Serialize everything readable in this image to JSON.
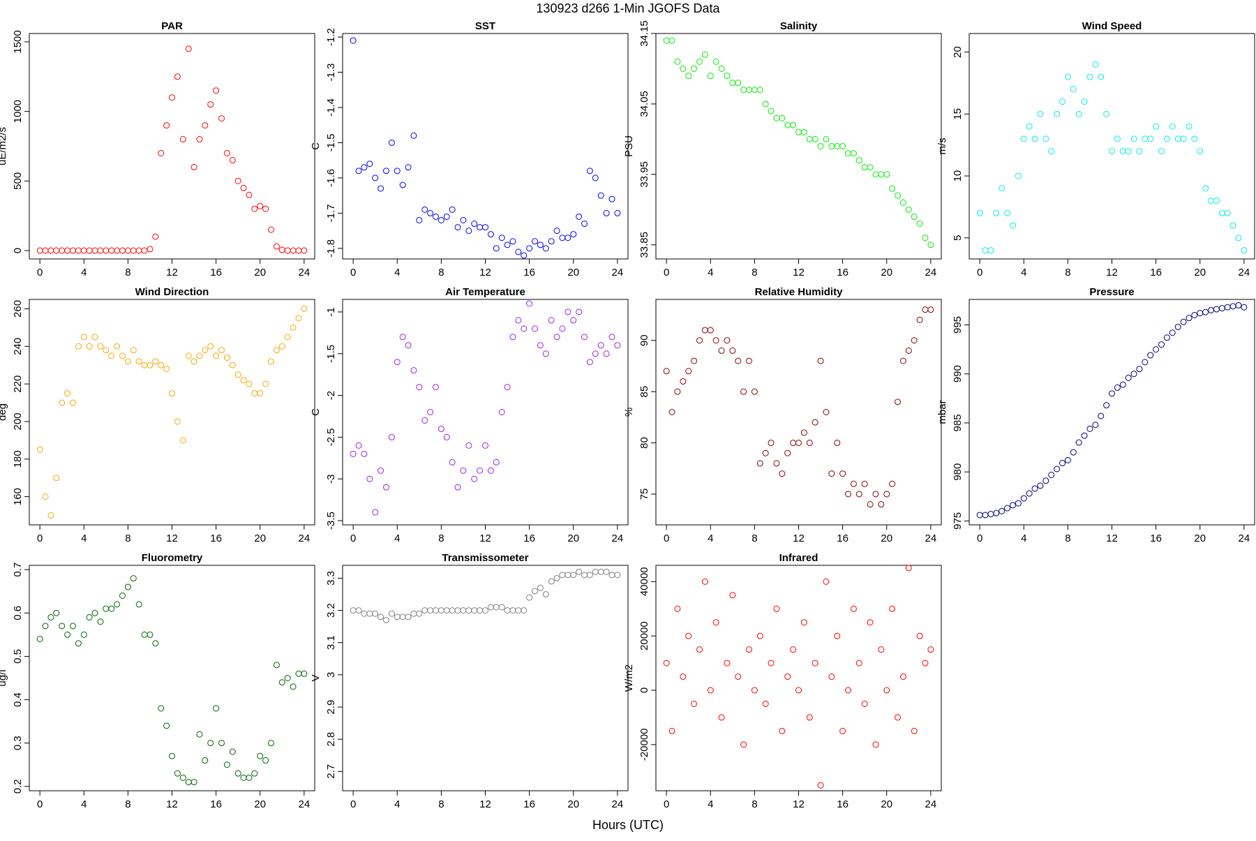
{
  "title": "130923   d266   1-Min  JGOFS Data",
  "xlabel": "Hours (UTC)",
  "chart_data": [
    {
      "type": "scatter",
      "title": "PAR",
      "ylabel": "uE/m2/s",
      "color": "#ff0000",
      "x": [
        0,
        0.5,
        1,
        1.5,
        2,
        2.5,
        3,
        3.5,
        4,
        4.5,
        5,
        5.5,
        6,
        6.5,
        7,
        7.5,
        8,
        8.5,
        9,
        9.5,
        10,
        10.5,
        11,
        11.5,
        12,
        12.5,
        13,
        13.5,
        14,
        14.5,
        15,
        15.5,
        16,
        16.5,
        17,
        17.5,
        18,
        18.5,
        19,
        19.5,
        20,
        20.5,
        21,
        21.5,
        22,
        22.5,
        23,
        23.5,
        24
      ],
      "values": [
        0,
        0,
        0,
        0,
        0,
        0,
        0,
        0,
        0,
        0,
        0,
        0,
        0,
        0,
        0,
        0,
        0,
        0,
        0,
        0,
        10,
        100,
        700,
        900,
        1100,
        1250,
        800,
        1450,
        600,
        800,
        900,
        1050,
        1150,
        950,
        700,
        650,
        500,
        450,
        400,
        300,
        320,
        300,
        150,
        30,
        5,
        0,
        0,
        0,
        0
      ],
      "xlim": [
        -0.96,
        24.96
      ],
      "xticks": [
        0,
        4,
        8,
        12,
        16,
        20,
        24
      ],
      "ylim": [
        -60,
        1560
      ],
      "yticks": [
        0,
        500,
        1000,
        1500
      ]
    },
    {
      "type": "scatter",
      "title": "SST",
      "ylabel": "C",
      "color": "#0000ff",
      "x": [
        0,
        0.5,
        1,
        1.5,
        2,
        2.5,
        3,
        3.5,
        4,
        4.5,
        5,
        5.5,
        6,
        6.5,
        7,
        7.5,
        8,
        8.5,
        9,
        9.5,
        10,
        10.5,
        11,
        11.5,
        12,
        12.5,
        13,
        13.5,
        14,
        14.5,
        15,
        15.5,
        16,
        16.5,
        17,
        17.5,
        18,
        18.5,
        19,
        19.5,
        20,
        20.5,
        21,
        21.5,
        22,
        22.5,
        23,
        23.5,
        24
      ],
      "values": [
        -1.21,
        -1.58,
        -1.57,
        -1.56,
        -1.6,
        -1.63,
        -1.58,
        -1.5,
        -1.58,
        -1.62,
        -1.57,
        -1.48,
        -1.72,
        -1.69,
        -1.7,
        -1.71,
        -1.72,
        -1.71,
        -1.69,
        -1.74,
        -1.72,
        -1.75,
        -1.73,
        -1.74,
        -1.74,
        -1.76,
        -1.8,
        -1.77,
        -1.79,
        -1.78,
        -1.81,
        -1.82,
        -1.8,
        -1.78,
        -1.79,
        -1.8,
        -1.78,
        -1.75,
        -1.77,
        -1.77,
        -1.76,
        -1.71,
        -1.73,
        -1.58,
        -1.6,
        -1.65,
        -1.7,
        -1.66,
        -1.7
      ],
      "xlim": [
        -0.96,
        24.96
      ],
      "xticks": [
        0,
        4,
        8,
        12,
        16,
        20,
        24
      ],
      "ylim": [
        -1.83,
        -1.19
      ],
      "yticks": [
        -1.8,
        -1.7,
        -1.6,
        -1.5,
        -1.4,
        -1.3,
        -1.2
      ]
    },
    {
      "type": "scatter",
      "title": "Salinity",
      "ylabel": "PSU",
      "color": "#00ee00",
      "x": [
        0,
        0.5,
        1,
        1.5,
        2,
        2.5,
        3,
        3.5,
        4,
        4.5,
        5,
        5.5,
        6,
        6.5,
        7,
        7.5,
        8,
        8.5,
        9,
        9.5,
        10,
        10.5,
        11,
        11.5,
        12,
        12.5,
        13,
        13.5,
        14,
        14.5,
        15,
        15.5,
        16,
        16.5,
        17,
        17.5,
        18,
        18.5,
        19,
        19.5,
        20,
        20.5,
        21,
        21.5,
        22,
        22.5,
        23,
        23.5,
        24
      ],
      "values": [
        34.14,
        34.14,
        34.11,
        34.1,
        34.09,
        34.1,
        34.11,
        34.12,
        34.09,
        34.11,
        34.1,
        34.09,
        34.08,
        34.08,
        34.07,
        34.07,
        34.07,
        34.07,
        34.05,
        34.04,
        34.03,
        34.03,
        34.02,
        34.02,
        34.01,
        34.01,
        34.0,
        34.0,
        33.99,
        34.0,
        33.99,
        33.99,
        33.99,
        33.98,
        33.98,
        33.97,
        33.96,
        33.96,
        33.95,
        33.95,
        33.95,
        33.93,
        33.92,
        33.91,
        33.9,
        33.89,
        33.88,
        33.86,
        33.85
      ],
      "xlim": [
        -0.96,
        24.96
      ],
      "xticks": [
        0,
        4,
        8,
        12,
        16,
        20,
        24
      ],
      "ylim": [
        33.83,
        34.15
      ],
      "yticks": [
        33.85,
        33.95,
        34.05,
        34.15
      ]
    },
    {
      "type": "scatter",
      "title": "Wind Speed",
      "ylabel": "m/s",
      "color": "#00eeee",
      "x": [
        0,
        0.5,
        1,
        1.5,
        2,
        2.5,
        3,
        3.5,
        4,
        4.5,
        5,
        5.5,
        6,
        6.5,
        7,
        7.5,
        8,
        8.5,
        9,
        9.5,
        10,
        10.5,
        11,
        11.5,
        12,
        12.5,
        13,
        13.5,
        14,
        14.5,
        15,
        15.5,
        16,
        16.5,
        17,
        17.5,
        18,
        18.5,
        19,
        19.5,
        20,
        20.5,
        21,
        21.5,
        22,
        22.5,
        23,
        23.5,
        24
      ],
      "values": [
        7,
        4,
        4,
        7,
        9,
        7,
        6,
        10,
        13,
        14,
        13,
        15,
        13,
        12,
        15,
        16,
        18,
        17,
        15,
        16,
        18,
        19,
        18,
        15,
        12,
        13,
        12,
        12,
        13,
        12,
        13,
        13,
        14,
        12,
        13,
        14,
        13,
        13,
        14,
        13,
        12,
        9,
        8,
        8,
        7,
        7,
        6,
        5,
        4
      ],
      "xlim": [
        -0.96,
        24.96
      ],
      "xticks": [
        0,
        4,
        8,
        12,
        16,
        20,
        24
      ],
      "ylim": [
        3.3,
        21.5
      ],
      "yticks": [
        5,
        10,
        15,
        20
      ]
    },
    {
      "type": "scatter",
      "title": "Wind Direction",
      "ylabel": "deg",
      "color": "#ffa500",
      "x": [
        0,
        0.5,
        1,
        1.5,
        2,
        2.5,
        3,
        3.5,
        4,
        4.5,
        5,
        5.5,
        6,
        6.5,
        7,
        7.5,
        8,
        8.5,
        9,
        9.5,
        10,
        10.5,
        11,
        11.5,
        12,
        12.5,
        13,
        13.5,
        14,
        14.5,
        15,
        15.5,
        16,
        16.5,
        17,
        17.5,
        18,
        18.5,
        19,
        19.5,
        20,
        20.5,
        21,
        21.5,
        22,
        22.5,
        23,
        23.5,
        24
      ],
      "values": [
        185,
        160,
        150,
        170,
        210,
        215,
        210,
        240,
        245,
        240,
        245,
        240,
        238,
        235,
        240,
        235,
        232,
        238,
        232,
        230,
        230,
        232,
        230,
        228,
        215,
        200,
        190,
        235,
        232,
        235,
        238,
        240,
        235,
        238,
        234,
        230,
        225,
        222,
        220,
        215,
        215,
        220,
        232,
        238,
        240,
        245,
        250,
        255,
        260
      ],
      "xlim": [
        -0.96,
        24.96
      ],
      "xticks": [
        0,
        4,
        8,
        12,
        16,
        20,
        24
      ],
      "ylim": [
        145,
        265
      ],
      "yticks": [
        160,
        180,
        200,
        220,
        240,
        260
      ]
    },
    {
      "type": "scatter",
      "title": "Air Temperature",
      "ylabel": "C",
      "color": "#a020f0",
      "x": [
        0,
        0.5,
        1,
        1.5,
        2,
        2.5,
        3,
        3.5,
        4,
        4.5,
        5,
        5.5,
        6,
        6.5,
        7,
        7.5,
        8,
        8.5,
        9,
        9.5,
        10,
        10.5,
        11,
        11.5,
        12,
        12.5,
        13,
        13.5,
        14,
        14.5,
        15,
        15.5,
        16,
        16.5,
        17,
        17.5,
        18,
        18.5,
        19,
        19.5,
        20,
        20.5,
        21,
        21.5,
        22,
        22.5,
        23,
        23.5,
        24
      ],
      "values": [
        -2.7,
        -2.6,
        -2.7,
        -3.0,
        -3.4,
        -2.9,
        -3.1,
        -2.5,
        -1.6,
        -1.3,
        -1.4,
        -1.7,
        -1.9,
        -2.3,
        -2.2,
        -1.9,
        -2.4,
        -2.5,
        -2.8,
        -3.1,
        -2.9,
        -2.6,
        -3.0,
        -2.9,
        -2.6,
        -2.9,
        -2.8,
        -2.2,
        -1.9,
        -1.3,
        -1.1,
        -1.2,
        -0.9,
        -1.2,
        -1.4,
        -1.5,
        -1.1,
        -1.3,
        -1.2,
        -1.0,
        -1.1,
        -1.0,
        -1.3,
        -1.6,
        -1.5,
        -1.4,
        -1.5,
        -1.3,
        -1.4
      ],
      "xlim": [
        -0.96,
        24.96
      ],
      "xticks": [
        0,
        4,
        8,
        12,
        16,
        20,
        24
      ],
      "ylim": [
        -3.55,
        -0.85
      ],
      "yticks": [
        -3.5,
        -3.0,
        -2.5,
        -2.0,
        -1.5,
        -1.0
      ]
    },
    {
      "type": "scatter",
      "title": "Relative Humidity",
      "ylabel": "%",
      "color": "#8b0000",
      "x": [
        0,
        0.5,
        1,
        1.5,
        2,
        2.5,
        3,
        3.5,
        4,
        4.5,
        5,
        5.5,
        6,
        6.5,
        7,
        7.5,
        8,
        8.5,
        9,
        9.5,
        10,
        10.5,
        11,
        11.5,
        12,
        12.5,
        13,
        13.5,
        14,
        14.5,
        15,
        15.5,
        16,
        16.5,
        17,
        17.5,
        18,
        18.5,
        19,
        19.5,
        20,
        20.5,
        21,
        21.5,
        22,
        22.5,
        23,
        23.5,
        24
      ],
      "values": [
        87,
        83,
        85,
        86,
        87,
        88,
        90,
        91,
        91,
        90,
        89,
        90,
        89,
        88,
        85,
        88,
        85,
        78,
        79,
        80,
        78,
        77,
        79,
        80,
        80,
        81,
        80,
        82,
        88,
        83,
        77,
        80,
        77,
        75,
        76,
        75,
        76,
        74,
        75,
        74,
        75,
        76,
        84,
        88,
        89,
        90,
        92,
        93,
        93
      ],
      "xlim": [
        -0.96,
        24.96
      ],
      "xticks": [
        0,
        4,
        8,
        12,
        16,
        20,
        24
      ],
      "ylim": [
        72,
        94
      ],
      "yticks": [
        75,
        80,
        85,
        90
      ]
    },
    {
      "type": "scatter",
      "title": "Pressure",
      "ylabel": "mbar",
      "color": "#000080",
      "x": [
        0,
        0.5,
        1,
        1.5,
        2,
        2.5,
        3,
        3.5,
        4,
        4.5,
        5,
        5.5,
        6,
        6.5,
        7,
        7.5,
        8,
        8.5,
        9,
        9.5,
        10,
        10.5,
        11,
        11.5,
        12,
        12.5,
        13,
        13.5,
        14,
        14.5,
        15,
        15.5,
        16,
        16.5,
        17,
        17.5,
        18,
        18.5,
        19,
        19.5,
        20,
        20.5,
        21,
        21.5,
        22,
        22.5,
        23,
        23.5,
        24
      ],
      "values": [
        975.6,
        975.6,
        975.7,
        975.8,
        976,
        976.3,
        976.6,
        976.8,
        977.3,
        977.8,
        978.3,
        978.6,
        979.1,
        979.7,
        980.3,
        980.9,
        981.2,
        982,
        983,
        983.7,
        984.4,
        984.8,
        985.7,
        986.8,
        988,
        988.6,
        988.9,
        989.6,
        990,
        990.5,
        991.2,
        991.9,
        992.5,
        993,
        993.7,
        994.2,
        994.8,
        995.3,
        995.7,
        996,
        996.2,
        996.3,
        996.5,
        996.6,
        996.7,
        996.8,
        996.9,
        997,
        996.8
      ],
      "xlim": [
        -0.96,
        24.96
      ],
      "xticks": [
        0,
        4,
        8,
        12,
        16,
        20,
        24
      ],
      "ylim": [
        974.6,
        997.6
      ],
      "yticks": [
        975,
        980,
        985,
        990,
        995
      ]
    },
    {
      "type": "scatter",
      "title": "Fluorometry",
      "ylabel": "ug/l",
      "color": "#006400",
      "x": [
        0,
        0.5,
        1,
        1.5,
        2,
        2.5,
        3,
        3.5,
        4,
        4.5,
        5,
        5.5,
        6,
        6.5,
        7,
        7.5,
        8,
        8.5,
        9,
        9.5,
        10,
        10.5,
        11,
        11.5,
        12,
        12.5,
        13,
        13.5,
        14,
        14.5,
        15,
        15.5,
        16,
        16.5,
        17,
        17.5,
        18,
        18.5,
        19,
        19.5,
        20,
        20.5,
        21,
        21.5,
        22,
        22.5,
        23,
        23.5,
        24
      ],
      "values": [
        0.54,
        0.57,
        0.59,
        0.6,
        0.57,
        0.55,
        0.57,
        0.53,
        0.55,
        0.59,
        0.6,
        0.58,
        0.61,
        0.61,
        0.62,
        0.64,
        0.66,
        0.68,
        0.62,
        0.55,
        0.55,
        0.53,
        0.38,
        0.34,
        0.27,
        0.23,
        0.22,
        0.21,
        0.21,
        0.32,
        0.26,
        0.3,
        0.38,
        0.3,
        0.25,
        0.28,
        0.23,
        0.22,
        0.22,
        0.23,
        0.27,
        0.26,
        0.3,
        0.48,
        0.44,
        0.45,
        0.43,
        0.46,
        0.46
      ],
      "xlim": [
        -0.96,
        24.96
      ],
      "xticks": [
        0,
        4,
        8,
        12,
        16,
        20,
        24
      ],
      "ylim": [
        0.19,
        0.71
      ],
      "yticks": [
        0.2,
        0.3,
        0.4,
        0.5,
        0.6,
        0.7
      ]
    },
    {
      "type": "scatter",
      "title": "Transmissometer",
      "ylabel": "V",
      "color": "#808080",
      "x": [
        0,
        0.5,
        1,
        1.5,
        2,
        2.5,
        3,
        3.5,
        4,
        4.5,
        5,
        5.5,
        6,
        6.5,
        7,
        7.5,
        8,
        8.5,
        9,
        9.5,
        10,
        10.5,
        11,
        11.5,
        12,
        12.5,
        13,
        13.5,
        14,
        14.5,
        15,
        15.5,
        16,
        16.5,
        17,
        17.5,
        18,
        18.5,
        19,
        19.5,
        20,
        20.5,
        21,
        21.5,
        22,
        22.5,
        23,
        23.5,
        24
      ],
      "values": [
        3.2,
        3.2,
        3.19,
        3.19,
        3.19,
        3.18,
        3.17,
        3.19,
        3.18,
        3.18,
        3.18,
        3.19,
        3.19,
        3.2,
        3.2,
        3.2,
        3.2,
        3.2,
        3.2,
        3.2,
        3.2,
        3.2,
        3.2,
        3.2,
        3.2,
        3.21,
        3.21,
        3.21,
        3.2,
        3.2,
        3.2,
        3.2,
        3.24,
        3.26,
        3.27,
        3.25,
        3.29,
        3.3,
        3.31,
        3.31,
        3.31,
        3.32,
        3.31,
        3.31,
        3.32,
        3.32,
        3.32,
        3.31,
        3.31
      ],
      "xlim": [
        -0.96,
        24.96
      ],
      "xticks": [
        0,
        4,
        8,
        12,
        16,
        20,
        24
      ],
      "ylim": [
        2.64,
        3.34
      ],
      "yticks": [
        2.7,
        2.8,
        2.9,
        3.0,
        3.1,
        3.2,
        3.3
      ]
    },
    {
      "type": "scatter",
      "title": "Infrared",
      "ylabel": "W/m2",
      "color": "#ff0000",
      "x": [
        0,
        0.5,
        1,
        1.5,
        2,
        2.5,
        3,
        3.5,
        4,
        4.5,
        5,
        5.5,
        6,
        6.5,
        7,
        7.5,
        8,
        8.5,
        9,
        9.5,
        10,
        10.5,
        11,
        11.5,
        12,
        12.5,
        13,
        13.5,
        14,
        14.5,
        15,
        15.5,
        16,
        16.5,
        17,
        17.5,
        18,
        18.5,
        19,
        19.5,
        20,
        20.5,
        21,
        21.5,
        22,
        22.5,
        23,
        23.5,
        24
      ],
      "values": [
        10000,
        -15000,
        30000,
        5000,
        20000,
        -5000,
        15000,
        40000,
        0,
        25000,
        -10000,
        10000,
        35000,
        5000,
        -20000,
        15000,
        0,
        20000,
        -5000,
        10000,
        30000,
        -15000,
        5000,
        15000,
        0,
        25000,
        -10000,
        10000,
        -35000,
        40000,
        5000,
        20000,
        -15000,
        0,
        30000,
        10000,
        -5000,
        25000,
        -20000,
        15000,
        0,
        30000,
        -10000,
        5000,
        45000,
        -15000,
        20000,
        10000,
        15000
      ],
      "xlim": [
        -0.96,
        24.96
      ],
      "xticks": [
        0,
        4,
        8,
        12,
        16,
        20,
        24
      ],
      "ylim": [
        -37000,
        46000
      ],
      "yticks": [
        -20000,
        0,
        20000,
        40000
      ]
    }
  ]
}
